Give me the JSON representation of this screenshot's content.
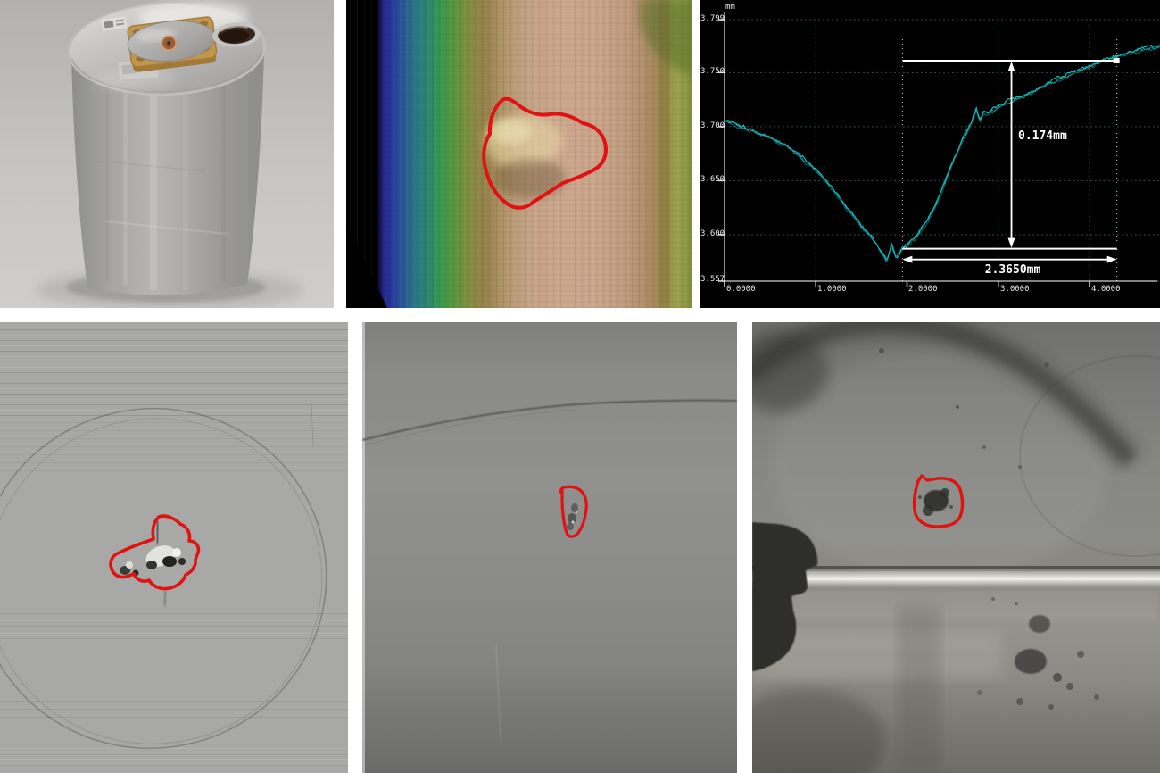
{
  "figure": {
    "description": "Six-panel non-destructive-testing figure: photo of aluminium test cylinder with transducer, colour 3D surface scan with outlined defect, surface depth profile chart, and three grayscale inspection images each with a red defect outline",
    "panels": [
      {
        "id": "cylinder-photo",
        "alt": "aluminium cylinder with mounted transducer plate and filler hole"
      },
      {
        "id": "surface-color-scan",
        "alt": "colour-coded curvature scan with red defect outline"
      },
      {
        "id": "depth-profile-chart",
        "alt": "profilometer trace of defect depth"
      },
      {
        "id": "scan-gray-1",
        "alt": "grayscale scan with bird-shaped red defect outline"
      },
      {
        "id": "scan-gray-2",
        "alt": "grayscale radiograph with small red defect outline"
      },
      {
        "id": "scan-gray-3",
        "alt": "grayscale close-up photo with red defect outline"
      }
    ]
  },
  "chart_data": {
    "type": "line",
    "title": "",
    "unit_label": "mm",
    "xlabel": "mm",
    "ylabel": "mm",
    "x_ticks": [
      "0.0000",
      "1.0000",
      "2.0000",
      "3.0000",
      "4.0000"
    ],
    "x_tick_values": [
      0,
      1,
      2,
      3,
      4
    ],
    "y_ticks": [
      "3.799",
      "3.750",
      "3.700",
      "3.650",
      "3.600",
      "3.557"
    ],
    "y_tick_values": [
      3.799,
      3.75,
      3.7,
      3.65,
      3.6,
      3.557
    ],
    "xlim": [
      0,
      4.77
    ],
    "ylim": [
      3.557,
      3.799
    ],
    "grid": true,
    "legend": "none",
    "series": [
      {
        "name": "surface-profile",
        "x": [
          0.0,
          0.1,
          0.2,
          0.3,
          0.4,
          0.5,
          0.6,
          0.7,
          0.8,
          0.9,
          1.0,
          1.1,
          1.2,
          1.3,
          1.4,
          1.5,
          1.58,
          1.65,
          1.72,
          1.78,
          1.83,
          1.88,
          1.93,
          1.98,
          2.05,
          2.12,
          2.2,
          2.3,
          2.4,
          2.5,
          2.6,
          2.7,
          2.76,
          2.8,
          2.84,
          2.9,
          3.0,
          3.1,
          3.2,
          3.4,
          3.6,
          3.8,
          4.0,
          4.2,
          4.4,
          4.6,
          4.77
        ],
        "y": [
          3.706,
          3.703,
          3.699,
          3.696,
          3.692,
          3.689,
          3.685,
          3.681,
          3.675,
          3.668,
          3.66,
          3.651,
          3.641,
          3.629,
          3.618,
          3.607,
          3.6,
          3.592,
          3.583,
          3.575,
          3.591,
          3.578,
          3.586,
          3.59,
          3.594,
          3.6,
          3.61,
          3.625,
          3.645,
          3.667,
          3.687,
          3.703,
          3.716,
          3.705,
          3.713,
          3.712,
          3.718,
          3.722,
          3.726,
          3.734,
          3.742,
          3.749,
          3.755,
          3.761,
          3.767,
          3.771,
          3.774
        ]
      }
    ],
    "annotations": {
      "depth_label": "0.174mm",
      "depth_value_mm": 0.174,
      "width_label": "2.3650mm",
      "width_value_mm": 2.365,
      "width_x_start_mm": 1.95,
      "width_x_end_mm": 4.3,
      "depth_top_mm": 3.761,
      "depth_bottom_mm": 3.587
    }
  },
  "colors": {
    "profile_line": "#17c9c9",
    "chart_background": "#000000",
    "chart_grid": "#2b4c44",
    "annotation": "#ffffff",
    "defect_outline": "#e01212"
  }
}
